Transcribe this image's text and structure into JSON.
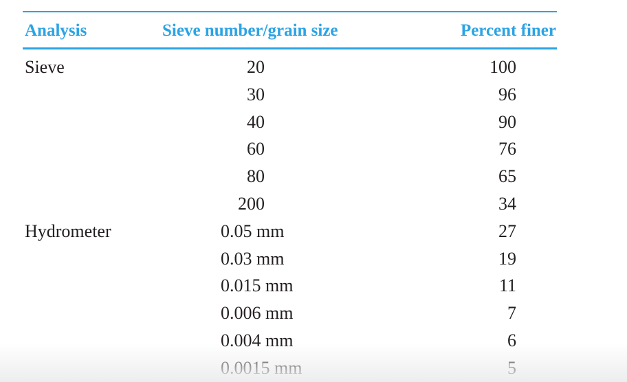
{
  "table": {
    "headers": {
      "analysis": "Analysis",
      "sieve": "Sieve number/grain size",
      "percent": "Percent finer"
    },
    "rows": [
      {
        "analysis": "Sieve",
        "size": "20",
        "percent": "100"
      },
      {
        "analysis": "",
        "size": "30",
        "percent": "96"
      },
      {
        "analysis": "",
        "size": "40",
        "percent": "90"
      },
      {
        "analysis": "",
        "size": "60",
        "percent": "76"
      },
      {
        "analysis": "",
        "size": "80",
        "percent": "65"
      },
      {
        "analysis": "",
        "size": "200",
        "percent": "34"
      },
      {
        "analysis": "Hydrometer",
        "size": "0.05 mm",
        "percent": "27"
      },
      {
        "analysis": "",
        "size": "0.03 mm",
        "percent": "19"
      },
      {
        "analysis": "",
        "size": "0.015 mm",
        "percent": "11"
      },
      {
        "analysis": "",
        "size": "0.006 mm",
        "percent": "7"
      },
      {
        "analysis": "",
        "size": "0.004 mm",
        "percent": "6"
      },
      {
        "analysis": "",
        "size": "0.0015 mm",
        "percent": "5"
      }
    ]
  },
  "colors": {
    "accent": "#2ba3e4",
    "text": "#231f20"
  }
}
